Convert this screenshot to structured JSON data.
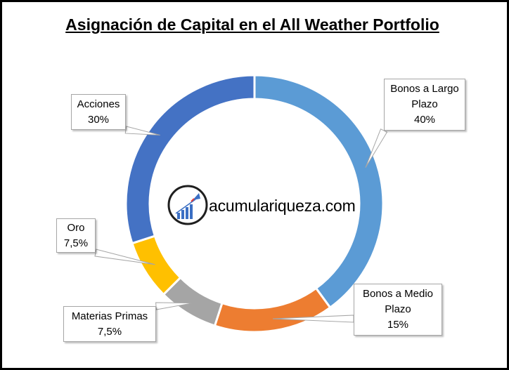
{
  "chart_data": {
    "type": "pie",
    "title": "Asignación de Capital en el All Weather Portfolio",
    "categories": [
      "Bonos a Largo Plazo",
      "Bonos a Medio Plazo",
      "Materias Primas",
      "Oro",
      "Acciones"
    ],
    "values": [
      40,
      15,
      7.5,
      7.5,
      30
    ],
    "data_labels": [
      {
        "lines": [
          "Bonos a Largo",
          "Plazo",
          "40%"
        ]
      },
      {
        "lines": [
          "Bonos a Medio",
          "Plazo",
          "15%"
        ]
      },
      {
        "lines": [
          "Materias Primas",
          "7,5%"
        ]
      },
      {
        "lines": [
          "Oro",
          "7,5%"
        ]
      },
      {
        "lines": [
          "Acciones",
          "30%"
        ]
      }
    ],
    "colors": [
      "#5b9bd5",
      "#ed7d31",
      "#a5a5a5",
      "#ffc000",
      "#4472c4"
    ],
    "donut": true,
    "legend": "none"
  },
  "brand": {
    "text": "acumulariqueza.com",
    "logo_icon": "rocket-rising-bar-chart-icon"
  }
}
